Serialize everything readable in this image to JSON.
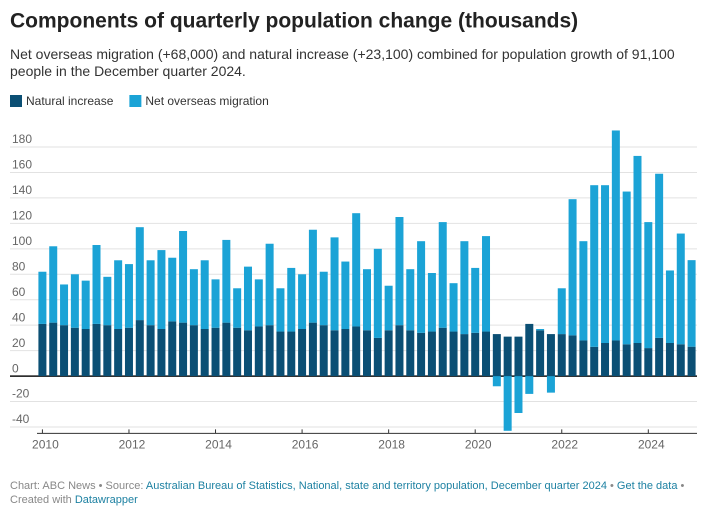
{
  "chart_data": {
    "type": "stacked_bar",
    "title": "Components of quarterly population change (thousands)",
    "subtitle": "Net overseas migration (+68,000) and natural increase (+23,100) combined for population growth of 91,100 people in the December quarter 2024.",
    "categories": [
      "2010",
      null,
      null,
      null,
      null,
      null,
      null,
      null,
      "2012",
      null,
      null,
      null,
      null,
      null,
      null,
      null,
      "2014",
      null,
      null,
      null,
      null,
      null,
      null,
      null,
      "2016",
      null,
      null,
      null,
      null,
      null,
      null,
      null,
      "2018",
      null,
      null,
      null,
      null,
      null,
      null,
      null,
      "2020",
      null,
      null,
      null,
      null,
      null,
      null,
      null,
      "2022",
      null,
      null,
      null,
      null,
      null,
      null,
      null,
      "2024",
      null,
      null,
      null,
      null
    ],
    "series": [
      {
        "name": "Natural increase",
        "color": "#0b4f74",
        "values": [
          41,
          42,
          40,
          38,
          37,
          41,
          40,
          37,
          38,
          44,
          40,
          37,
          43,
          42,
          40,
          37,
          38,
          42,
          38,
          36,
          39,
          40,
          35,
          35,
          37,
          42,
          40,
          36,
          37,
          39,
          36,
          30,
          36,
          40,
          36,
          34,
          35,
          38,
          35,
          33,
          34,
          35,
          33,
          31,
          31,
          41,
          36,
          33,
          33,
          32,
          28,
          23,
          26,
          28,
          25,
          26,
          22,
          30,
          26,
          25,
          23.1
        ]
      },
      {
        "name": "Net overseas migration",
        "color": "#1ba3d6",
        "values": [
          41,
          60,
          32,
          42,
          38,
          62,
          38,
          54,
          50,
          73,
          51,
          62,
          50,
          72,
          44,
          54,
          38,
          65,
          31,
          50,
          37,
          64,
          34,
          50,
          43,
          73,
          42,
          73,
          53,
          89,
          48,
          70,
          35,
          85,
          48,
          72,
          46,
          83,
          38,
          73,
          51,
          75,
          -8,
          -43,
          -29,
          -14,
          1,
          -13,
          36,
          107,
          78,
          127,
          124,
          165,
          120,
          147,
          99,
          129,
          57,
          87,
          68
        ]
      }
    ],
    "ylim": [
      -45,
      195
    ],
    "yticks": [
      -40,
      -20,
      0,
      20,
      40,
      60,
      80,
      100,
      120,
      140,
      160,
      180
    ],
    "grid": true,
    "footer": {
      "prefix": "Chart: ABC News • Source: ",
      "source": "Australian Bureau of Statistics, National, state and territory population, December quarter 2024",
      "sep": " • ",
      "data_link": "Get the data",
      "created": " • Created with ",
      "tool": "Datawrapper"
    }
  }
}
